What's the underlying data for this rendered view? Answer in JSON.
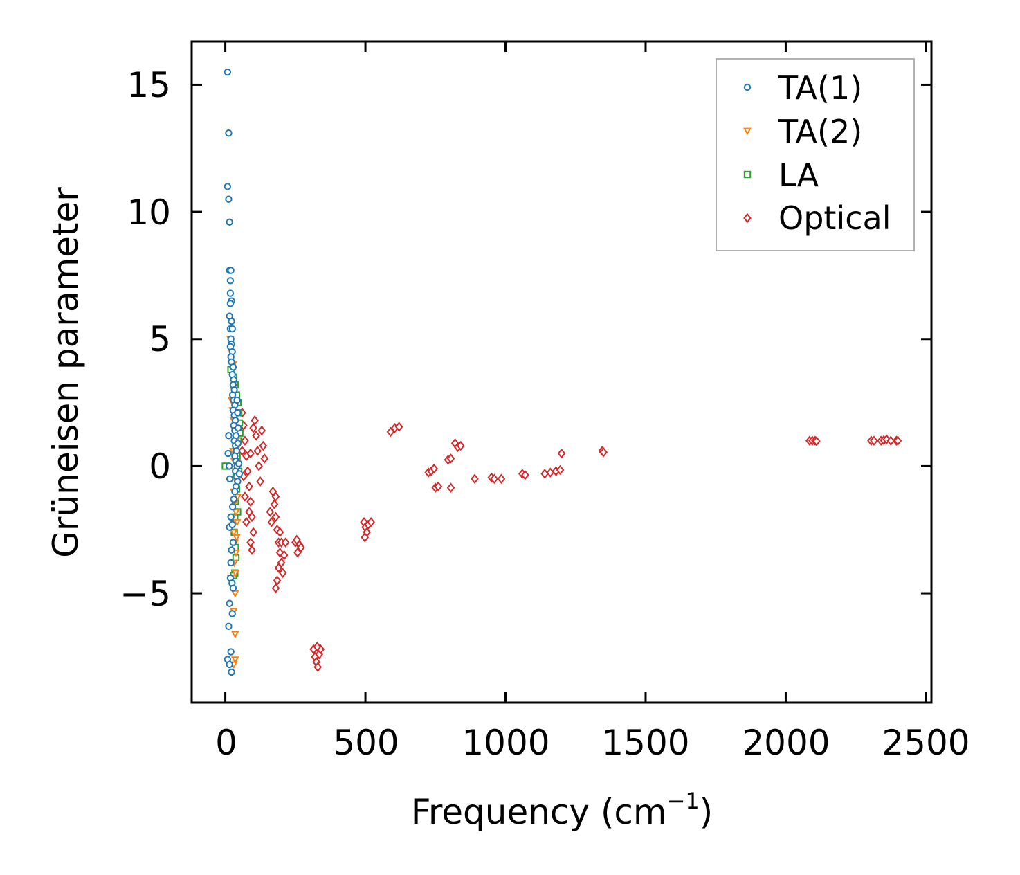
{
  "chart_data": {
    "type": "scatter",
    "title": "",
    "xlabel": "Frequency (cm",
    "xlabel_sup": "−1",
    "xlabel_close": ")",
    "ylabel": "Grüneisen parameter",
    "xlim": [
      -120,
      2520
    ],
    "ylim": [
      -9.3,
      16.7
    ],
    "xticks": [
      0,
      500,
      1000,
      1500,
      2000,
      2500
    ],
    "xtick_labels": [
      "0",
      "500",
      "1000",
      "1500",
      "2000",
      "2500"
    ],
    "yticks": [
      -5,
      0,
      5,
      10,
      15
    ],
    "ytick_labels": [
      "−5",
      "0",
      "5",
      "10",
      "15"
    ],
    "legend_position": "top-right",
    "series": [
      {
        "name": "TA(1)",
        "marker": "circle",
        "color": "#1f77b4",
        "points": [
          [
            8,
            15.5
          ],
          [
            12,
            13.1
          ],
          [
            8,
            11.0
          ],
          [
            12,
            10.5
          ],
          [
            15,
            9.6
          ],
          [
            15,
            7.7
          ],
          [
            20,
            7.7
          ],
          [
            18,
            7.3
          ],
          [
            18,
            6.8
          ],
          [
            22,
            6.5
          ],
          [
            18,
            6.4
          ],
          [
            15,
            5.9
          ],
          [
            22,
            5.7
          ],
          [
            18,
            5.4
          ],
          [
            25,
            5.4
          ],
          [
            20,
            5.0
          ],
          [
            22,
            4.8
          ],
          [
            18,
            4.7
          ],
          [
            25,
            4.5
          ],
          [
            20,
            4.3
          ],
          [
            22,
            4.1
          ],
          [
            28,
            3.9
          ],
          [
            25,
            3.6
          ],
          [
            30,
            3.4
          ],
          [
            28,
            3.2
          ],
          [
            32,
            3.0
          ],
          [
            26,
            2.8
          ],
          [
            30,
            2.6
          ],
          [
            34,
            2.4
          ],
          [
            28,
            2.2
          ],
          [
            32,
            2.0
          ],
          [
            36,
            1.8
          ],
          [
            30,
            1.6
          ],
          [
            34,
            1.4
          ],
          [
            38,
            1.2
          ],
          [
            32,
            1.0
          ],
          [
            36,
            0.8
          ],
          [
            40,
            0.6
          ],
          [
            34,
            0.4
          ],
          [
            38,
            0.2
          ],
          [
            42,
            0.0
          ],
          [
            36,
            -0.2
          ],
          [
            40,
            -0.4
          ],
          [
            44,
            -0.6
          ],
          [
            38,
            -0.8
          ],
          [
            34,
            -1.0
          ],
          [
            30,
            -1.3
          ],
          [
            26,
            -1.6
          ],
          [
            20,
            -2.0
          ],
          [
            15,
            -2.4
          ],
          [
            25,
            -2.3
          ],
          [
            28,
            -3.0
          ],
          [
            22,
            -3.3
          ],
          [
            20,
            -3.8
          ],
          [
            18,
            -4.4
          ],
          [
            24,
            -4.6
          ],
          [
            28,
            -4.8
          ],
          [
            15,
            -5.4
          ],
          [
            25,
            -5.8
          ],
          [
            12,
            -6.3
          ],
          [
            20,
            -7.3
          ],
          [
            8,
            -7.6
          ],
          [
            15,
            -7.8
          ],
          [
            22,
            -8.1
          ],
          [
            10,
            0.5
          ],
          [
            12,
            1.2
          ],
          [
            14,
            0.0
          ],
          [
            16,
            -0.5
          ],
          [
            45,
            0.9
          ],
          [
            48,
            0.1
          ],
          [
            50,
            -0.3
          ],
          [
            46,
            1.5
          ],
          [
            44,
            2.1
          ],
          [
            42,
            2.6
          ]
        ]
      },
      {
        "name": "TA(2)",
        "marker": "triangle-down",
        "color": "#ff7f0e",
        "points": [
          [
            18,
            5.0
          ],
          [
            22,
            4.5
          ],
          [
            28,
            4.0
          ],
          [
            25,
            3.5
          ],
          [
            30,
            3.0
          ],
          [
            22,
            2.6
          ],
          [
            26,
            2.2
          ],
          [
            30,
            1.8
          ],
          [
            34,
            1.4
          ],
          [
            38,
            1.0
          ],
          [
            28,
            0.6
          ],
          [
            32,
            0.2
          ],
          [
            36,
            -0.2
          ],
          [
            40,
            -0.6
          ],
          [
            30,
            -1.0
          ],
          [
            34,
            -1.4
          ],
          [
            38,
            -1.8
          ],
          [
            42,
            -2.2
          ],
          [
            30,
            -2.6
          ],
          [
            34,
            -3.0
          ],
          [
            38,
            -3.4
          ],
          [
            32,
            -3.8
          ],
          [
            36,
            -4.2
          ],
          [
            20,
            -4.4
          ],
          [
            35,
            -5.0
          ],
          [
            30,
            -5.7
          ],
          [
            35,
            -6.6
          ],
          [
            30,
            -7.8
          ],
          [
            35,
            -7.6
          ],
          [
            40,
            -2.8
          ],
          [
            44,
            -1.2
          ],
          [
            46,
            0.8
          ]
        ]
      },
      {
        "name": "LA",
        "marker": "square",
        "color": "#2ca02c",
        "points": [
          [
            20,
            3.8
          ],
          [
            30,
            3.5
          ],
          [
            35,
            3.2
          ],
          [
            40,
            2.8
          ],
          [
            45,
            2.5
          ],
          [
            48,
            2.1
          ],
          [
            50,
            1.7
          ],
          [
            52,
            1.3
          ],
          [
            46,
            1.0
          ],
          [
            0,
            0.0
          ],
          [
            38,
            -0.4
          ],
          [
            40,
            -0.9
          ],
          [
            36,
            -1.4
          ],
          [
            34,
            -2.0
          ],
          [
            32,
            -2.6
          ],
          [
            36,
            -3.2
          ],
          [
            38,
            -3.6
          ],
          [
            34,
            -4.2
          ],
          [
            30,
            -4.3
          ],
          [
            42,
            0.4
          ],
          [
            44,
            -1.8
          ],
          [
            48,
            -0.2
          ]
        ]
      },
      {
        "name": "Optical",
        "marker": "diamond",
        "color": "#d62728",
        "points": [
          [
            60,
            2.1
          ],
          [
            65,
            1.6
          ],
          [
            70,
            1.0
          ],
          [
            75,
            0.4
          ],
          [
            80,
            -0.2
          ],
          [
            85,
            -0.8
          ],
          [
            90,
            -1.4
          ],
          [
            95,
            -2.0
          ],
          [
            100,
            -2.6
          ],
          [
            90,
            -3.0
          ],
          [
            95,
            -3.3
          ],
          [
            105,
            1.8
          ],
          [
            110,
            1.2
          ],
          [
            115,
            0.6
          ],
          [
            120,
            0.0
          ],
          [
            125,
            -0.6
          ],
          [
            130,
            1.4
          ],
          [
            135,
            0.8
          ],
          [
            140,
            0.3
          ],
          [
            100,
            1.5
          ],
          [
            90,
            0.5
          ],
          [
            85,
            -1.8
          ],
          [
            75,
            -2.2
          ],
          [
            70,
            -1.2
          ],
          [
            65,
            -0.4
          ],
          [
            60,
            0.6
          ],
          [
            170,
            -1.0
          ],
          [
            175,
            -1.5
          ],
          [
            180,
            -2.0
          ],
          [
            185,
            -2.5
          ],
          [
            190,
            -3.0
          ],
          [
            165,
            -2.2
          ],
          [
            160,
            -1.8
          ],
          [
            195,
            -2.6
          ],
          [
            200,
            -3.0
          ],
          [
            195,
            -3.4
          ],
          [
            190,
            -4.0
          ],
          [
            185,
            -4.5
          ],
          [
            180,
            -4.8
          ],
          [
            200,
            -3.8
          ],
          [
            205,
            -4.2
          ],
          [
            210,
            -3.5
          ],
          [
            215,
            -3.0
          ],
          [
            180,
            -1.2
          ],
          [
            250,
            -3.0
          ],
          [
            258,
            -3.4
          ],
          [
            265,
            -3.1
          ],
          [
            270,
            -3.2
          ],
          [
            255,
            -2.9
          ],
          [
            315,
            -7.2
          ],
          [
            320,
            -7.5
          ],
          [
            325,
            -7.7
          ],
          [
            330,
            -7.9
          ],
          [
            335,
            -7.4
          ],
          [
            340,
            -7.2
          ],
          [
            328,
            -7.1
          ],
          [
            495,
            -2.2
          ],
          [
            500,
            -2.4
          ],
          [
            505,
            -2.6
          ],
          [
            498,
            -2.8
          ],
          [
            510,
            -2.3
          ],
          [
            520,
            -2.2
          ],
          [
            590,
            1.35
          ],
          [
            605,
            1.5
          ],
          [
            620,
            1.55
          ],
          [
            725,
            -0.25
          ],
          [
            735,
            -0.2
          ],
          [
            745,
            -0.1
          ],
          [
            750,
            -0.85
          ],
          [
            760,
            -0.8
          ],
          [
            795,
            0.25
          ],
          [
            805,
            0.3
          ],
          [
            805,
            -0.85
          ],
          [
            820,
            0.9
          ],
          [
            830,
            0.75
          ],
          [
            840,
            0.8
          ],
          [
            890,
            -0.5
          ],
          [
            950,
            -0.45
          ],
          [
            960,
            -0.5
          ],
          [
            985,
            -0.5
          ],
          [
            1060,
            -0.3
          ],
          [
            1070,
            -0.35
          ],
          [
            1140,
            -0.3
          ],
          [
            1160,
            -0.25
          ],
          [
            1180,
            -0.2
          ],
          [
            1195,
            -0.15
          ],
          [
            1200,
            0.5
          ],
          [
            1345,
            0.6
          ],
          [
            1350,
            0.55
          ],
          [
            2085,
            1.0
          ],
          [
            2095,
            1.0
          ],
          [
            2105,
            1.0
          ],
          [
            2110,
            0.98
          ],
          [
            2305,
            1.0
          ],
          [
            2315,
            1.0
          ],
          [
            2340,
            1.0
          ],
          [
            2350,
            1.02
          ],
          [
            2360,
            1.05
          ],
          [
            2375,
            1.0
          ],
          [
            2395,
            1.0
          ],
          [
            2400,
            1.0
          ]
        ]
      }
    ]
  }
}
